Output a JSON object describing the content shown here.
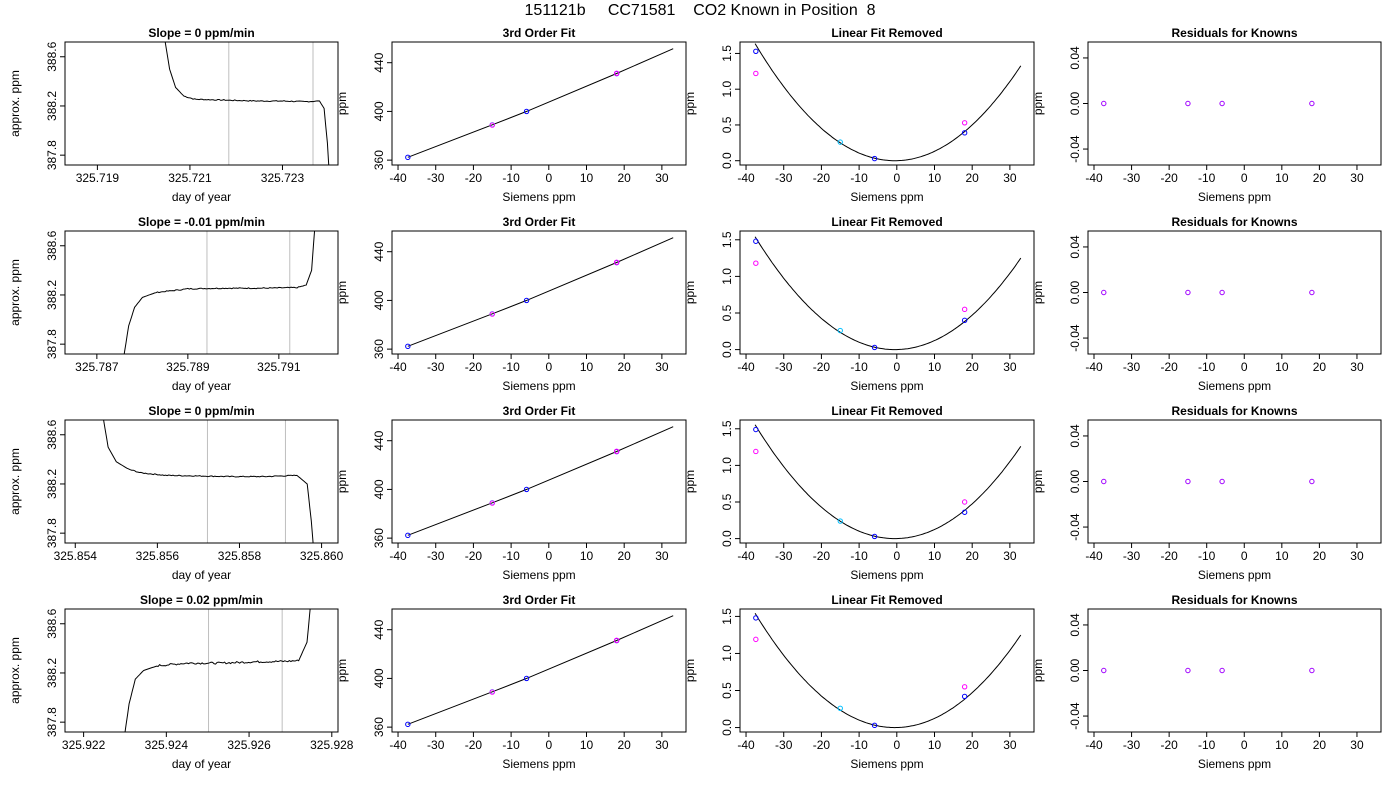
{
  "header": {
    "title": "151121b     CC71581    CO2 Known in Position  8"
  },
  "chart_data": [
    {
      "type": "line",
      "title": "Slope =  0  ppm/min",
      "xlabel": "day of year",
      "ylabel": "approx. ppm",
      "xlim": [
        325.7183,
        325.7242
      ],
      "ylim": [
        387.72,
        388.72
      ],
      "xticks": [
        325.719,
        325.721,
        325.723
      ],
      "yticks": [
        387.8,
        388.2,
        388.6
      ],
      "vlines": [
        325.72184,
        325.72366
      ],
      "vline_color": "#bebebe",
      "series": [
        {
          "x": [
            325.72043,
            325.72056,
            325.72069,
            325.72087,
            325.7211,
            325.7215,
            325.722,
            325.7225,
            325.723,
            325.7235,
            325.7238,
            325.7239,
            325.72397,
            325.72402
          ],
          "y": [
            388.8,
            388.5,
            388.35,
            388.28,
            388.255,
            388.25,
            388.245,
            388.24,
            388.24,
            388.235,
            388.24,
            388.18,
            387.9,
            387.6
          ],
          "noise": 0.004
        }
      ]
    },
    {
      "type": "line",
      "title": "Slope =  -0.01  ppm/min",
      "xlabel": "day of year",
      "ylabel": "approx. ppm",
      "xlim": [
        325.7863,
        325.7923
      ],
      "ylim": [
        387.72,
        388.72
      ],
      "xticks": [
        325.787,
        325.789,
        325.791
      ],
      "yticks": [
        387.8,
        388.2,
        388.6
      ],
      "vlines": [
        325.78942,
        325.79124
      ],
      "vline_color": "#bebebe",
      "series": [
        {
          "x": [
            325.78755,
            325.7877,
            325.78783,
            325.788,
            325.7883,
            325.789,
            325.7898,
            325.7906,
            325.7914,
            325.7916,
            325.79172,
            325.7918
          ],
          "y": [
            387.6,
            387.95,
            388.1,
            388.18,
            388.22,
            388.25,
            388.255,
            388.255,
            388.26,
            388.28,
            388.4,
            388.8
          ],
          "noise": 0.004
        }
      ]
    },
    {
      "type": "line",
      "title": "Slope =  0  ppm/min",
      "xlabel": "day of year",
      "ylabel": "approx. ppm",
      "xlim": [
        325.85375,
        325.8604
      ],
      "ylim": [
        387.72,
        388.72
      ],
      "xticks": [
        325.854,
        325.856,
        325.858,
        325.86
      ],
      "xtick_labels": [
        "325.854",
        "325.856",
        "325.858",
        "325.860"
      ],
      "yticks": [
        387.8,
        388.2,
        388.6
      ],
      "vlines": [
        325.85722,
        325.85912
      ],
      "vline_color": "#bebebe",
      "series": [
        {
          "x": [
            325.85465,
            325.8548,
            325.855,
            325.8553,
            325.8556,
            325.8562,
            325.857,
            325.8578,
            325.8586,
            325.8594,
            325.85965,
            325.85975,
            325.85982
          ],
          "y": [
            388.8,
            388.5,
            388.38,
            388.32,
            388.29,
            388.27,
            388.265,
            388.26,
            388.26,
            388.27,
            388.2,
            387.9,
            387.6
          ],
          "noise": 0.004
        }
      ]
    },
    {
      "type": "line",
      "title": "Slope =  0.02  ppm/min",
      "xlabel": "day of year",
      "ylabel": "approx. ppm",
      "xlim": [
        325.92155,
        325.92815
      ],
      "ylim": [
        387.72,
        388.72
      ],
      "xticks": [
        325.922,
        325.924,
        325.926,
        325.928
      ],
      "yticks": [
        387.8,
        388.2,
        388.6
      ],
      "vlines": [
        325.92502,
        325.9268
      ],
      "vline_color": "#bebebe",
      "series": [
        {
          "x": [
            325.92295,
            325.9231,
            325.92325,
            325.92345,
            325.9238,
            325.9245,
            325.9253,
            325.9261,
            325.9269,
            325.9272,
            325.9274,
            325.9275
          ],
          "y": [
            387.6,
            387.95,
            388.15,
            388.22,
            388.26,
            388.28,
            388.28,
            388.29,
            388.295,
            388.3,
            388.45,
            388.8
          ],
          "noise": 0.008
        }
      ]
    },
    {
      "type": "scatter",
      "title": "3rd Order Fit",
      "xlabel": "Siemens ppm",
      "ylabel": "ppm",
      "xlim": [
        -41.6,
        36.4
      ],
      "ylim": [
        356,
        457
      ],
      "xticks": [
        -40,
        -30,
        -20,
        -10,
        0,
        10,
        20,
        30
      ],
      "yticks": [
        360,
        400,
        440
      ],
      "curve": {
        "x": [
          -37.4,
          -15,
          -5.9,
          18,
          33
        ],
        "y": [
          362.3,
          389.0,
          400.0,
          431.1,
          451.5
        ]
      },
      "series": [
        {
          "name": "",
          "color": "#0000ff",
          "x": [
            -37.4,
            -5.9,
            18
          ],
          "y": [
            362.3,
            400.0,
            431.1
          ]
        },
        {
          "name": "",
          "color": "#00bfff",
          "x": [
            -15
          ],
          "y": [
            389.0
          ]
        },
        {
          "name": "",
          "color": "#ff00ff",
          "x": [
            -15,
            18
          ],
          "y": [
            388.8,
            431.3
          ]
        }
      ]
    },
    {
      "type": "scatter",
      "title": "3rd Order Fit",
      "xlabel": "Siemens ppm",
      "ylabel": "ppm",
      "xlim": [
        -41.6,
        36.4
      ],
      "ylim": [
        356,
        457
      ],
      "xticks": [
        -40,
        -30,
        -20,
        -10,
        0,
        10,
        20,
        30
      ],
      "yticks": [
        360,
        400,
        440
      ],
      "curve": {
        "x": [
          -37.4,
          -15,
          -5.9,
          18,
          33
        ],
        "y": [
          362.3,
          389.0,
          400.0,
          431.1,
          451.5
        ]
      },
      "series": [
        {
          "name": "",
          "color": "#0000ff",
          "x": [
            -37.4,
            -5.9,
            18
          ],
          "y": [
            362.3,
            400.0,
            431.1
          ]
        },
        {
          "name": "",
          "color": "#00bfff",
          "x": [
            -15
          ],
          "y": [
            389.0
          ]
        },
        {
          "name": "",
          "color": "#ff00ff",
          "x": [
            -15,
            18
          ],
          "y": [
            388.8,
            431.3
          ]
        }
      ]
    },
    {
      "type": "scatter",
      "title": "3rd Order Fit",
      "xlabel": "Siemens ppm",
      "ylabel": "ppm",
      "xlim": [
        -41.6,
        36.4
      ],
      "ylim": [
        356,
        457
      ],
      "xticks": [
        -40,
        -30,
        -20,
        -10,
        0,
        10,
        20,
        30
      ],
      "yticks": [
        360,
        400,
        440
      ],
      "curve": {
        "x": [
          -37.4,
          -15,
          -5.9,
          18,
          33
        ],
        "y": [
          362.3,
          389.0,
          400.0,
          431.1,
          451.5
        ]
      },
      "series": [
        {
          "name": "",
          "color": "#0000ff",
          "x": [
            -37.4,
            -5.9,
            18
          ],
          "y": [
            362.3,
            400.0,
            431.1
          ]
        },
        {
          "name": "",
          "color": "#00bfff",
          "x": [
            -15
          ],
          "y": [
            389.0
          ]
        },
        {
          "name": "",
          "color": "#ff00ff",
          "x": [
            -15,
            18
          ],
          "y": [
            388.8,
            431.3
          ]
        }
      ]
    },
    {
      "type": "scatter",
      "title": "3rd Order Fit",
      "xlabel": "Siemens ppm",
      "ylabel": "ppm",
      "xlim": [
        -41.6,
        36.4
      ],
      "ylim": [
        356,
        457
      ],
      "xticks": [
        -40,
        -30,
        -20,
        -10,
        0,
        10,
        20,
        30
      ],
      "yticks": [
        360,
        400,
        440
      ],
      "curve": {
        "x": [
          -37.4,
          -15,
          -5.9,
          18,
          33
        ],
        "y": [
          362.3,
          389.0,
          400.0,
          431.1,
          451.5
        ]
      },
      "series": [
        {
          "name": "",
          "color": "#0000ff",
          "x": [
            -37.4,
            -5.9,
            18
          ],
          "y": [
            362.3,
            400.0,
            431.1
          ]
        },
        {
          "name": "",
          "color": "#00bfff",
          "x": [
            -15
          ],
          "y": [
            389.0
          ]
        },
        {
          "name": "",
          "color": "#ff00ff",
          "x": [
            -15,
            18
          ],
          "y": [
            388.8,
            431.3
          ]
        }
      ]
    },
    {
      "type": "scatter",
      "title": "Linear Fit Removed",
      "xlabel": "Siemens ppm",
      "ylabel": "ppm",
      "xlim": [
        -41.6,
        36.4
      ],
      "ylim": [
        -0.06,
        1.66
      ],
      "xticks": [
        -40,
        -30,
        -20,
        -10,
        0,
        10,
        20,
        30
      ],
      "yticks": [
        0,
        0.5,
        1,
        1.5
      ],
      "ytick_labels": [
        "0.0",
        "0.5",
        "1.0",
        "1.5"
      ],
      "quadratic": {
        "a": 0.00119,
        "x0": -0.5,
        "c": 0,
        "from": -37.6,
        "to": 33
      },
      "series": [
        {
          "name": "",
          "color": "#0000ff",
          "x": [
            -37.4,
            -5.9,
            18
          ],
          "y": [
            1.53,
            0.03,
            0.39
          ]
        },
        {
          "name": "",
          "color": "#00bfff",
          "x": [
            -15
          ],
          "y": [
            0.26
          ]
        },
        {
          "name": "",
          "color": "#ff00ff",
          "x": [
            -37.4,
            18
          ],
          "y": [
            1.22,
            0.53
          ]
        }
      ]
    },
    {
      "type": "scatter",
      "title": "Linear Fit Removed",
      "xlabel": "Siemens ppm",
      "ylabel": "ppm",
      "xlim": [
        -41.6,
        36.4
      ],
      "ylim": [
        -0.06,
        1.62
      ],
      "xticks": [
        -40,
        -30,
        -20,
        -10,
        0,
        10,
        20,
        30
      ],
      "yticks": [
        0,
        0.5,
        1,
        1.5
      ],
      "ytick_labels": [
        "0.0",
        "0.5",
        "1.0",
        "1.5"
      ],
      "quadratic": {
        "a": 0.00112,
        "x0": -0.5,
        "c": 0,
        "from": -37.6,
        "to": 33
      },
      "series": [
        {
          "name": "",
          "color": "#0000ff",
          "x": [
            -37.4,
            -5.9,
            18
          ],
          "y": [
            1.48,
            0.03,
            0.4
          ]
        },
        {
          "name": "",
          "color": "#00bfff",
          "x": [
            -15
          ],
          "y": [
            0.26
          ]
        },
        {
          "name": "",
          "color": "#ff00ff",
          "x": [
            -37.4,
            18
          ],
          "y": [
            1.18,
            0.55
          ]
        }
      ]
    },
    {
      "type": "scatter",
      "title": "Linear Fit Removed",
      "xlabel": "Siemens ppm",
      "ylabel": "ppm",
      "xlim": [
        -41.6,
        36.4
      ],
      "ylim": [
        -0.06,
        1.62
      ],
      "xticks": [
        -40,
        -30,
        -20,
        -10,
        0,
        10,
        20,
        30
      ],
      "yticks": [
        0,
        0.5,
        1,
        1.5
      ],
      "ytick_labels": [
        "0.0",
        "0.5",
        "1.0",
        "1.5"
      ],
      "quadratic": {
        "a": 0.00113,
        "x0": -0.5,
        "c": 0,
        "from": -37.6,
        "to": 33
      },
      "series": [
        {
          "name": "",
          "color": "#0000ff",
          "x": [
            -37.4,
            -5.9,
            18
          ],
          "y": [
            1.49,
            0.03,
            0.36
          ]
        },
        {
          "name": "",
          "color": "#00bfff",
          "x": [
            -15
          ],
          "y": [
            0.24
          ]
        },
        {
          "name": "",
          "color": "#ff00ff",
          "x": [
            -37.4,
            18
          ],
          "y": [
            1.19,
            0.5
          ]
        }
      ]
    },
    {
      "type": "scatter",
      "title": "Linear Fit Removed",
      "xlabel": "Siemens ppm",
      "ylabel": "ppm",
      "xlim": [
        -41.6,
        36.4
      ],
      "ylim": [
        -0.06,
        1.6
      ],
      "xticks": [
        -40,
        -30,
        -20,
        -10,
        0,
        10,
        20,
        30
      ],
      "yticks": [
        0,
        0.5,
        1,
        1.5
      ],
      "ytick_labels": [
        "0.0",
        "0.5",
        "1.0",
        "1.5"
      ],
      "quadratic": {
        "a": 0.00112,
        "x0": -0.5,
        "c": 0,
        "from": -37.6,
        "to": 33
      },
      "series": [
        {
          "name": "",
          "color": "#0000ff",
          "x": [
            -37.4,
            -5.9,
            18
          ],
          "y": [
            1.48,
            0.03,
            0.42
          ]
        },
        {
          "name": "",
          "color": "#00bfff",
          "x": [
            -15
          ],
          "y": [
            0.26
          ]
        },
        {
          "name": "",
          "color": "#ff00ff",
          "x": [
            -37.4,
            18
          ],
          "y": [
            1.19,
            0.55
          ]
        }
      ]
    },
    {
      "type": "scatter",
      "title": "Residuals for Knowns",
      "xlabel": "Siemens ppm",
      "ylabel": "ppm",
      "xlim": [
        -41.6,
        36.4
      ],
      "ylim": [
        -0.054,
        0.054
      ],
      "xticks": [
        -40,
        -30,
        -20,
        -10,
        0,
        10,
        20,
        30
      ],
      "yticks": [
        -0.04,
        0,
        0.04
      ],
      "ytick_labels": [
        "-0.04",
        "0.00",
        "0.04"
      ],
      "series": [
        {
          "name": "",
          "color": "#a000ff",
          "x": [
            -37.4,
            -15,
            -5.9,
            18
          ],
          "y": [
            0,
            0,
            0,
            0
          ]
        }
      ]
    },
    {
      "type": "scatter",
      "title": "Residuals for Knowns",
      "xlabel": "Siemens ppm",
      "ylabel": "ppm",
      "xlim": [
        -41.6,
        36.4
      ],
      "ylim": [
        -0.054,
        0.054
      ],
      "xticks": [
        -40,
        -30,
        -20,
        -10,
        0,
        10,
        20,
        30
      ],
      "yticks": [
        -0.04,
        0,
        0.04
      ],
      "ytick_labels": [
        "-0.04",
        "0.00",
        "0.04"
      ],
      "series": [
        {
          "name": "",
          "color": "#a000ff",
          "x": [
            -37.4,
            -15,
            -5.9,
            18
          ],
          "y": [
            0,
            0,
            0,
            0
          ]
        }
      ]
    },
    {
      "type": "scatter",
      "title": "Residuals for Knowns",
      "xlabel": "Siemens ppm",
      "ylabel": "ppm",
      "xlim": [
        -41.6,
        36.4
      ],
      "ylim": [
        -0.054,
        0.054
      ],
      "xticks": [
        -40,
        -30,
        -20,
        -10,
        0,
        10,
        20,
        30
      ],
      "yticks": [
        -0.04,
        0,
        0.04
      ],
      "ytick_labels": [
        "-0.04",
        "0.00",
        "0.04"
      ],
      "series": [
        {
          "name": "",
          "color": "#a000ff",
          "x": [
            -37.4,
            -15,
            -5.9,
            18
          ],
          "y": [
            0,
            0,
            0,
            0
          ]
        }
      ]
    },
    {
      "type": "scatter",
      "title": "Residuals for Knowns",
      "xlabel": "Siemens ppm",
      "ylabel": "ppm",
      "xlim": [
        -41.6,
        36.4
      ],
      "ylim": [
        -0.054,
        0.054
      ],
      "xticks": [
        -40,
        -30,
        -20,
        -10,
        0,
        10,
        20,
        30
      ],
      "yticks": [
        -0.04,
        0,
        0.04
      ],
      "ytick_labels": [
        "-0.04",
        "0.00",
        "0.04"
      ],
      "series": [
        {
          "name": "",
          "color": "#a000ff",
          "x": [
            -37.4,
            -15,
            -5.9,
            18
          ],
          "y": [
            0,
            0,
            0,
            0
          ]
        }
      ]
    }
  ]
}
